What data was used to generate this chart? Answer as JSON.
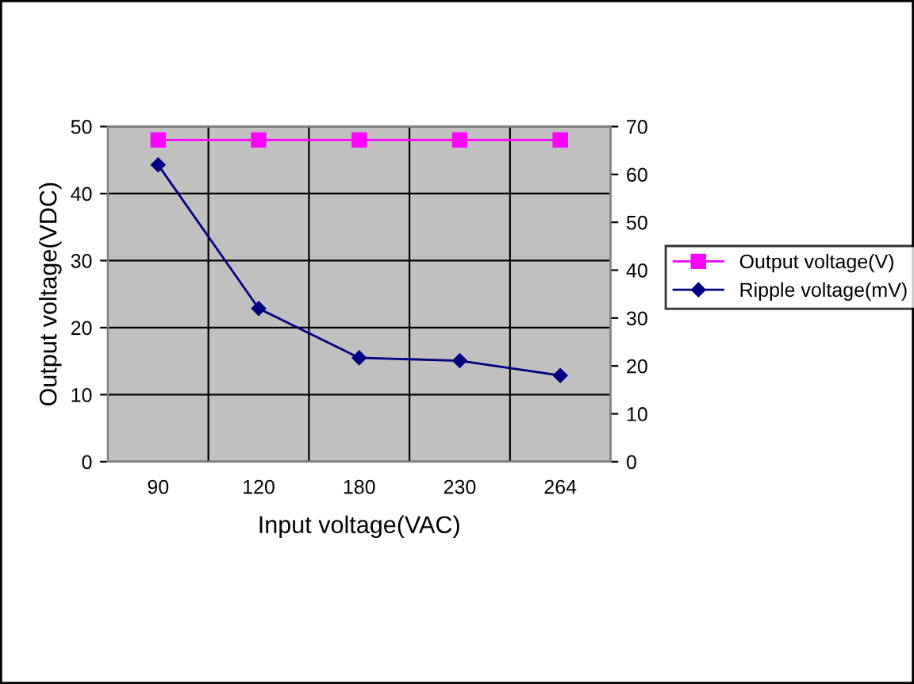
{
  "chart_data": {
    "type": "line",
    "xlabel": "Input voltage(VAC)",
    "ylabel": "Output voltage(VDC)",
    "categories": [
      "90",
      "120",
      "180",
      "230",
      "264"
    ],
    "series": [
      {
        "name": "Output voltage(V)",
        "color": "#ff00ff",
        "marker": "square",
        "values": [
          48,
          48,
          48,
          48,
          48
        ]
      },
      {
        "name": "Ripple voltage(mV)",
        "color": "#000080",
        "marker": "diamond",
        "axis": "y2",
        "values": [
          62,
          32,
          21.7,
          21.1,
          18
        ]
      }
    ],
    "ylim": [
      0,
      50
    ],
    "yticks": [
      0,
      10,
      20,
      30,
      40,
      50
    ],
    "y2lim": [
      0,
      70
    ],
    "y2ticks": [
      0,
      10,
      20,
      30,
      40,
      50,
      60,
      70
    ],
    "grid": true,
    "legend": "right",
    "line_style": "solid"
  }
}
